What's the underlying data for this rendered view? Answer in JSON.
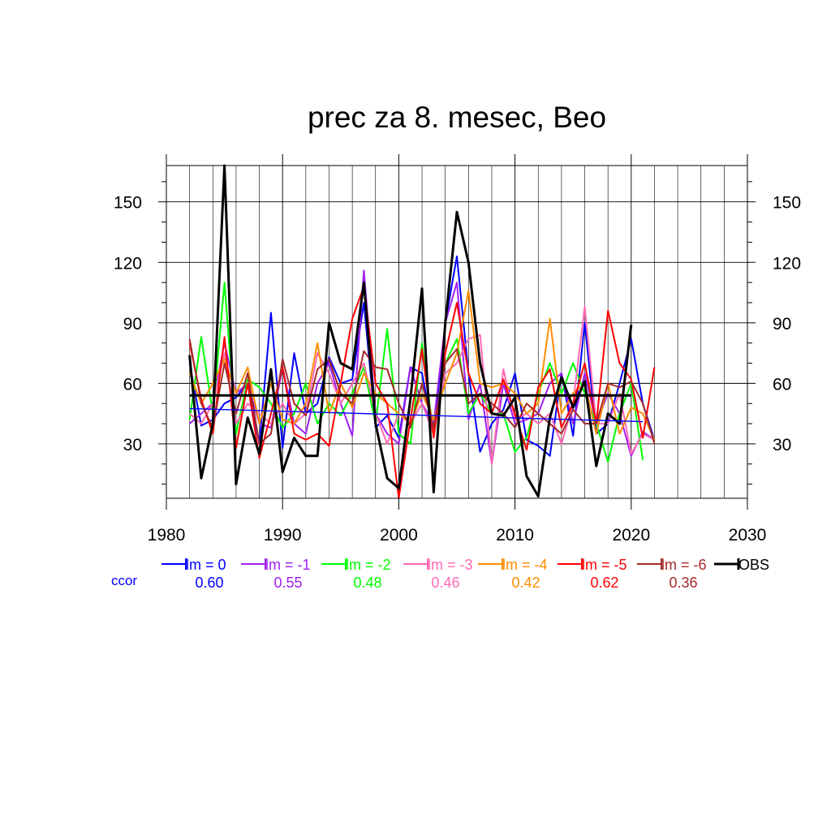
{
  "chart_data": {
    "type": "line",
    "title": "prec za 8. mesec, Beo",
    "xlabel": "",
    "ylabel": "",
    "xlim": [
      1980,
      2030
    ],
    "ylim": [
      3,
      168
    ],
    "x_ticks": [
      1980,
      1990,
      2000,
      2010,
      2020,
      2030
    ],
    "x_tick_labels": [
      "1980",
      "1990",
      "2000",
      "2010",
      "2020",
      "2030"
    ],
    "y_ticks": [
      30,
      60,
      90,
      120,
      150
    ],
    "y_tick_labels": [
      "30",
      "60",
      "90",
      "120",
      "150"
    ],
    "grid": true,
    "legend_position": "bottom",
    "ccor_label": "ccor",
    "series": [
      {
        "name": "lm = 0",
        "color": "#0000ff",
        "ccor": "0.60",
        "x": [
          1982,
          1983,
          1984,
          1985,
          1986,
          1987,
          1988,
          1989,
          1990,
          1991,
          1992,
          1993,
          1994,
          1995,
          1996,
          1997,
          1998,
          1999,
          2000,
          2001,
          2002,
          2003,
          2004,
          2005,
          2006,
          2007,
          2008,
          2009,
          2010,
          2011,
          2012,
          2013,
          2014,
          2015,
          2016,
          2017,
          2018,
          2019,
          2020,
          2021,
          2022
        ],
        "values": [
          70,
          39,
          42,
          50,
          53,
          60,
          30,
          95,
          28,
          75,
          45,
          50,
          73,
          60,
          62,
          100,
          38,
          44,
          33,
          68,
          65,
          35,
          90,
          123,
          65,
          26,
          40,
          47,
          65,
          32,
          29,
          24,
          65,
          34,
          90,
          35,
          40,
          60,
          82,
          50,
          32
        ]
      },
      {
        "name": "lm = -1",
        "color": "#a020f0",
        "ccor": "0.55",
        "x": [
          1982,
          1983,
          1984,
          1985,
          1986,
          1987,
          1988,
          1989,
          1990,
          1991,
          1992,
          1993,
          1994,
          1995,
          1996,
          1997,
          1998,
          1999,
          2000,
          2001,
          2002,
          2003,
          2004,
          2005,
          2006,
          2007,
          2008,
          2009,
          2010,
          2011,
          2012,
          2013,
          2014,
          2015,
          2016,
          2017,
          2018,
          2019,
          2020,
          2021,
          2022
        ],
        "values": [
          40,
          45,
          50,
          80,
          55,
          60,
          40,
          38,
          68,
          40,
          35,
          60,
          70,
          50,
          34,
          116,
          45,
          35,
          30,
          68,
          50,
          40,
          90,
          110,
          42,
          60,
          20,
          60,
          40,
          42,
          45,
          60,
          65,
          40,
          65,
          40,
          55,
          45,
          24,
          36,
          32
        ]
      },
      {
        "name": "lm = -2",
        "color": "#00ff00",
        "ccor": "0.48",
        "x": [
          1982,
          1983,
          1984,
          1985,
          1986,
          1987,
          1988,
          1989,
          1990,
          1991,
          1992,
          1993,
          1994,
          1995,
          1996,
          1997,
          1998,
          1999,
          2000,
          2001,
          2002,
          2003,
          2004,
          2005,
          2006,
          2007,
          2008,
          2009,
          2010,
          2011,
          2012,
          2013,
          2014,
          2015,
          2016,
          2017,
          2018,
          2019,
          2020,
          2021
        ],
        "values": [
          42,
          83,
          45,
          110,
          35,
          62,
          58,
          50,
          38,
          45,
          60,
          40,
          50,
          44,
          55,
          68,
          40,
          87,
          35,
          30,
          80,
          34,
          70,
          82,
          45,
          55,
          45,
          45,
          26,
          33,
          55,
          70,
          55,
          70,
          55,
          40,
          21,
          45,
          60,
          22
        ]
      },
      {
        "name": "lm = -3",
        "color": "#ff69b4",
        "ccor": "0.46",
        "x": [
          1982,
          1983,
          1984,
          1985,
          1986,
          1987,
          1988,
          1989,
          1990,
          1991,
          1992,
          1993,
          1994,
          1995,
          1996,
          1997,
          1998,
          1999,
          2000,
          2001,
          2002,
          2003,
          2004,
          2005,
          2006,
          2007,
          2008,
          2009,
          2010,
          2011,
          2012,
          2013,
          2014,
          2015,
          2016,
          2017,
          2018,
          2019,
          2020,
          2021,
          2022
        ],
        "values": [
          45,
          40,
          50,
          75,
          40,
          50,
          45,
          40,
          50,
          40,
          45,
          75,
          65,
          50,
          60,
          70,
          45,
          30,
          45,
          40,
          50,
          35,
          65,
          70,
          82,
          84,
          20,
          67,
          42,
          45,
          40,
          45,
          30,
          50,
          98,
          40,
          40,
          55,
          25,
          35,
          32
        ]
      },
      {
        "name": "lm = -4",
        "color": "#ff8c00",
        "ccor": "0.42",
        "x": [
          1982,
          1983,
          1984,
          1985,
          1986,
          1987,
          1988,
          1989,
          1990,
          1991,
          1992,
          1993,
          1994,
          1995,
          1996,
          1997,
          1998,
          1999,
          2000,
          2001,
          2002,
          2003,
          2004,
          2005,
          2006,
          2007,
          2008,
          2009,
          2010,
          2011,
          2012,
          2013,
          2014,
          2015,
          2016,
          2017,
          2018,
          2019,
          2020,
          2021,
          2022
        ],
        "values": [
          65,
          50,
          60,
          72,
          55,
          68,
          40,
          60,
          42,
          40,
          50,
          80,
          45,
          60,
          48,
          65,
          55,
          50,
          45,
          40,
          55,
          42,
          60,
          75,
          106,
          60,
          58,
          60,
          55,
          45,
          50,
          92,
          45,
          55,
          60,
          35,
          60,
          35,
          48,
          45,
          32
        ]
      },
      {
        "name": "lm = -5",
        "color": "#ff0000",
        "ccor": "0.62",
        "x": [
          1982,
          1983,
          1984,
          1985,
          1986,
          1987,
          1988,
          1989,
          1990,
          1991,
          1992,
          1993,
          1994,
          1995,
          1996,
          1997,
          1998,
          1999,
          2000,
          2001,
          2002,
          2003,
          2004,
          2005,
          2006,
          2007,
          2008,
          2009,
          2010,
          2011,
          2012,
          2013,
          2014,
          2015,
          2016,
          2017,
          2018,
          2019,
          2020,
          2021,
          2022
        ],
        "values": [
          80,
          52,
          35,
          83,
          28,
          60,
          23,
          45,
          68,
          35,
          32,
          35,
          29,
          60,
          92,
          108,
          60,
          50,
          3,
          42,
          77,
          33,
          75,
          100,
          65,
          50,
          45,
          62,
          45,
          27,
          58,
          67,
          38,
          50,
          70,
          40,
          96,
          70,
          62,
          33,
          68
        ]
      },
      {
        "name": "lm = -6",
        "color": "#a52a2a",
        "ccor": "0.36",
        "x": [
          1982,
          1983,
          1984,
          1985,
          1986,
          1987,
          1988,
          1989,
          1990,
          1991,
          1992,
          1993,
          1994,
          1995,
          1996,
          1997,
          1998,
          1999,
          2000,
          2001,
          2002,
          2003,
          2004,
          2005,
          2006,
          2007,
          2008,
          2009,
          2010,
          2011,
          2012,
          2013,
          2014,
          2015,
          2016,
          2017,
          2018,
          2019,
          2020,
          2021,
          2022
        ],
        "values": [
          82,
          50,
          38,
          70,
          45,
          65,
          30,
          35,
          72,
          50,
          44,
          67,
          72,
          55,
          50,
          76,
          68,
          67,
          50,
          38,
          60,
          38,
          70,
          77,
          50,
          55,
          50,
          45,
          38,
          50,
          45,
          40,
          35,
          47,
          40,
          40,
          60,
          58,
          61,
          50,
          30
        ]
      },
      {
        "name": "OBS",
        "color": "#000000",
        "ccor": "",
        "x": [
          1982,
          1983,
          1984,
          1985,
          1986,
          1987,
          1988,
          1989,
          1990,
          1991,
          1992,
          1993,
          1994,
          1995,
          1996,
          1997,
          1998,
          1999,
          2000,
          2001,
          2002,
          2003,
          2004,
          2005,
          2006,
          2007,
          2008,
          2009,
          2010,
          2011,
          2012,
          2013,
          2014,
          2015,
          2016,
          2017,
          2018,
          2019,
          2020
        ],
        "values": [
          74,
          13,
          40,
          168,
          10,
          43,
          25,
          67,
          16,
          33,
          24,
          24,
          90,
          70,
          67,
          110,
          40,
          13,
          8,
          52,
          107,
          6,
          90,
          145,
          120,
          70,
          45,
          44,
          53,
          14,
          4,
          43,
          63,
          48,
          61,
          19,
          45,
          40,
          89
        ]
      }
    ],
    "trend_lines": [
      {
        "series": "lm = 0",
        "color": "#0000ff",
        "x": [
          1982,
          2021
        ],
        "values": [
          47.5,
          41
        ]
      },
      {
        "series": "OBS",
        "color": "#000000",
        "x": [
          1982,
          2020
        ],
        "values": [
          54,
          54
        ]
      }
    ]
  }
}
